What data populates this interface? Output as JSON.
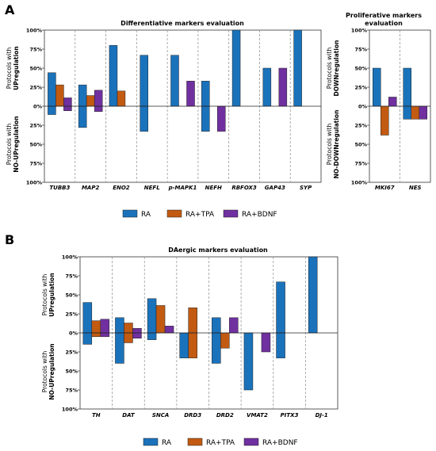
{
  "colors": {
    "RA": "#1a72bb",
    "RA+TPA": "#c25a12",
    "RA+BDNF": "#7030a0"
  },
  "legend": [
    "RA",
    "RA+TPA",
    "RA+BDNF"
  ],
  "panel_labels": [
    "A",
    "B"
  ],
  "chart_data": [
    {
      "type": "bar",
      "id": "A1",
      "title": "Differentiative markers evaluation",
      "ylabel_top": [
        "Protocols with",
        "UPregulation"
      ],
      "ylabel_bottom": [
        "Protocols with",
        "NO-UPregulation"
      ],
      "yticks": [
        "100%",
        "75%",
        "50%",
        "25%",
        "0%",
        "25%",
        "50%",
        "75%",
        "100%"
      ],
      "ylim": [
        -100,
        100
      ],
      "categories": [
        "TUBB3",
        "MAP2",
        "ENO2",
        "NEFL",
        "p-MAPK1",
        "NEFH",
        "RBFOX3",
        "GAP43",
        "SYP"
      ],
      "series": [
        {
          "name": "RA",
          "up": [
            44,
            28,
            80,
            67,
            67,
            33,
            100,
            50,
            100
          ],
          "down": [
            -11,
            -28,
            0,
            -33,
            0,
            -33,
            0,
            0,
            0
          ]
        },
        {
          "name": "RA+TPA",
          "up": [
            28,
            14,
            20,
            0,
            0,
            0,
            0,
            0,
            0
          ],
          "down": [
            0,
            0,
            0,
            0,
            0,
            0,
            0,
            0,
            0
          ]
        },
        {
          "name": "RA+BDNF",
          "up": [
            11,
            21,
            0,
            0,
            33,
            0,
            0,
            50,
            0
          ],
          "down": [
            -6,
            -7,
            0,
            0,
            0,
            -33,
            0,
            0,
            0
          ]
        }
      ]
    },
    {
      "type": "bar",
      "id": "A2",
      "title": [
        "Proliferative markers",
        "evaluation"
      ],
      "ylabel_top": [
        "Protocols with",
        "DOWNregulation"
      ],
      "ylabel_bottom": [
        "Protocols with",
        "NO-DOWNregulation"
      ],
      "yticks": [
        "100%",
        "75%",
        "50%",
        "25%",
        "0%",
        "25%",
        "50%",
        "75%",
        "100%"
      ],
      "ylim": [
        -100,
        100
      ],
      "categories": [
        "MKI67",
        "NES"
      ],
      "series": [
        {
          "name": "RA",
          "up": [
            50,
            50
          ],
          "down": [
            0,
            -17
          ]
        },
        {
          "name": "RA+TPA",
          "up": [
            0,
            0
          ],
          "down": [
            -38,
            -17
          ]
        },
        {
          "name": "RA+BDNF",
          "up": [
            12,
            0
          ],
          "down": [
            0,
            -17
          ]
        }
      ]
    },
    {
      "type": "bar",
      "id": "B",
      "title": "DAergic markers evaluation",
      "ylabel_top": [
        "Protocols with",
        "UPregulation"
      ],
      "ylabel_bottom": [
        "Protocols with",
        "NO-UPregulation"
      ],
      "yticks": [
        "100%",
        "75%",
        "50%",
        "25%",
        "0%",
        "25%",
        "50%",
        "75%",
        "100%"
      ],
      "ylim": [
        -100,
        100
      ],
      "categories": [
        "TH",
        "DAT",
        "SNCA",
        "DRD3",
        "DRD2",
        "VMAT2",
        "PITX3",
        "DJ-1"
      ],
      "series": [
        {
          "name": "RA",
          "up": [
            40,
            20,
            45,
            0,
            20,
            0,
            67,
            100
          ],
          "down": [
            -15,
            -40,
            -9,
            -33,
            -40,
            -75,
            -33,
            0
          ]
        },
        {
          "name": "RA+TPA",
          "up": [
            16,
            13,
            36,
            33,
            0,
            0,
            0,
            0
          ],
          "down": [
            -5,
            -13,
            0,
            -33,
            -20,
            0,
            0,
            0
          ]
        },
        {
          "name": "RA+BDNF",
          "up": [
            18,
            6,
            9,
            0,
            20,
            0,
            0,
            0
          ],
          "down": [
            -5,
            -7,
            0,
            0,
            0,
            -25,
            0,
            0
          ]
        }
      ]
    }
  ]
}
